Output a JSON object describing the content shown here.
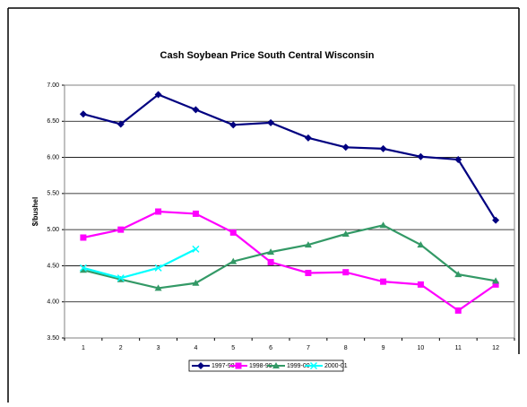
{
  "chart_data": {
    "type": "line",
    "title": "Cash Soybean Price South Central Wisconsin",
    "y_label": "$/bushel",
    "categories": [
      1,
      2,
      3,
      4,
      5,
      6,
      7,
      8,
      9,
      10,
      11,
      12
    ],
    "series": [
      {
        "name": "1997-98",
        "color": "#000080",
        "marker": "diamond",
        "values": [
          6.6,
          6.46,
          6.87,
          6.66,
          6.45,
          6.48,
          6.27,
          6.14,
          6.12,
          6.01,
          5.97,
          5.13
        ]
      },
      {
        "name": "1998-99",
        "color": "#ff00ff",
        "marker": "square",
        "values": [
          4.89,
          5.0,
          5.25,
          5.22,
          4.96,
          4.55,
          4.4,
          4.41,
          4.28,
          4.24,
          3.88,
          4.24
        ]
      },
      {
        "name": "1999-00",
        "color": "#339966",
        "marker": "triangle",
        "values": [
          4.44,
          4.31,
          4.19,
          4.26,
          4.56,
          4.69,
          4.79,
          4.94,
          5.06,
          4.79,
          4.38,
          4.29
        ]
      },
      {
        "name": "2000-01",
        "color": "#00ffff",
        "marker": "x",
        "values": [
          4.47,
          4.33,
          4.47,
          4.73,
          null,
          null,
          null,
          null,
          null,
          null,
          null,
          null
        ]
      }
    ],
    "ylim": [
      3.5,
      7.0
    ],
    "yticks": [
      {
        "value": 3.5,
        "label": "3.50"
      },
      {
        "value": 4.0,
        "label": "4.00"
      },
      {
        "value": 4.5,
        "label": "4.50"
      },
      {
        "value": 5.0,
        "label": "5.00"
      },
      {
        "value": 5.5,
        "label": "5.50"
      },
      {
        "value": 6.0,
        "label": "6.00"
      },
      {
        "value": 6.5,
        "label": "6.50"
      },
      {
        "value": 7.0,
        "label": "7.00"
      }
    ],
    "grid": true
  }
}
